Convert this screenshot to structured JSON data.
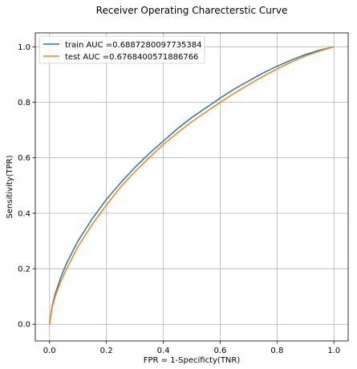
{
  "chart_data": {
    "type": "line",
    "title": "Receiver Operating Charecterstic Curve",
    "xlabel": "FPR = 1-Specificty(TNR)",
    "ylabel": "Sensitivity(TPR)",
    "xlim": [
      -0.05,
      1.05
    ],
    "ylim": [
      -0.06,
      1.05
    ],
    "xticks": [
      0.0,
      0.2,
      0.4,
      0.6,
      0.8,
      1.0
    ],
    "xtick_labels": [
      "0.0",
      "0.2",
      "0.4",
      "0.6",
      "0.8",
      "1.0"
    ],
    "yticks": [
      0.0,
      0.2,
      0.4,
      0.6,
      0.8,
      1.0
    ],
    "ytick_labels": [
      "0.0",
      "0.2",
      "0.4",
      "0.6",
      "0.8",
      "1.0"
    ],
    "grid": true,
    "legend_position": "upper-left",
    "series": [
      {
        "name": "train AUC =0.6887280097735384",
        "color": "#1f77b4",
        "x": [
          0.0,
          0.005,
          0.01,
          0.02,
          0.04,
          0.06,
          0.08,
          0.1,
          0.15,
          0.2,
          0.25,
          0.3,
          0.35,
          0.4,
          0.45,
          0.5,
          0.55,
          0.6,
          0.65,
          0.7,
          0.75,
          0.8,
          0.85,
          0.9,
          0.95,
          1.0
        ],
        "y": [
          0.0,
          0.04,
          0.07,
          0.11,
          0.17,
          0.22,
          0.26,
          0.3,
          0.38,
          0.45,
          0.51,
          0.565,
          0.615,
          0.66,
          0.705,
          0.745,
          0.78,
          0.815,
          0.848,
          0.877,
          0.905,
          0.93,
          0.952,
          0.972,
          0.988,
          1.0
        ]
      },
      {
        "name": "test AUC =0.6768400571886766",
        "color": "#ff7f0e",
        "x": [
          0.0,
          0.005,
          0.01,
          0.02,
          0.04,
          0.06,
          0.08,
          0.1,
          0.15,
          0.2,
          0.25,
          0.3,
          0.35,
          0.4,
          0.45,
          0.5,
          0.55,
          0.6,
          0.65,
          0.7,
          0.75,
          0.8,
          0.85,
          0.9,
          0.95,
          1.0
        ],
        "y": [
          0.0,
          0.035,
          0.065,
          0.1,
          0.155,
          0.2,
          0.24,
          0.28,
          0.36,
          0.43,
          0.495,
          0.55,
          0.6,
          0.648,
          0.69,
          0.73,
          0.765,
          0.8,
          0.833,
          0.864,
          0.893,
          0.92,
          0.945,
          0.967,
          0.985,
          1.0
        ]
      }
    ]
  }
}
